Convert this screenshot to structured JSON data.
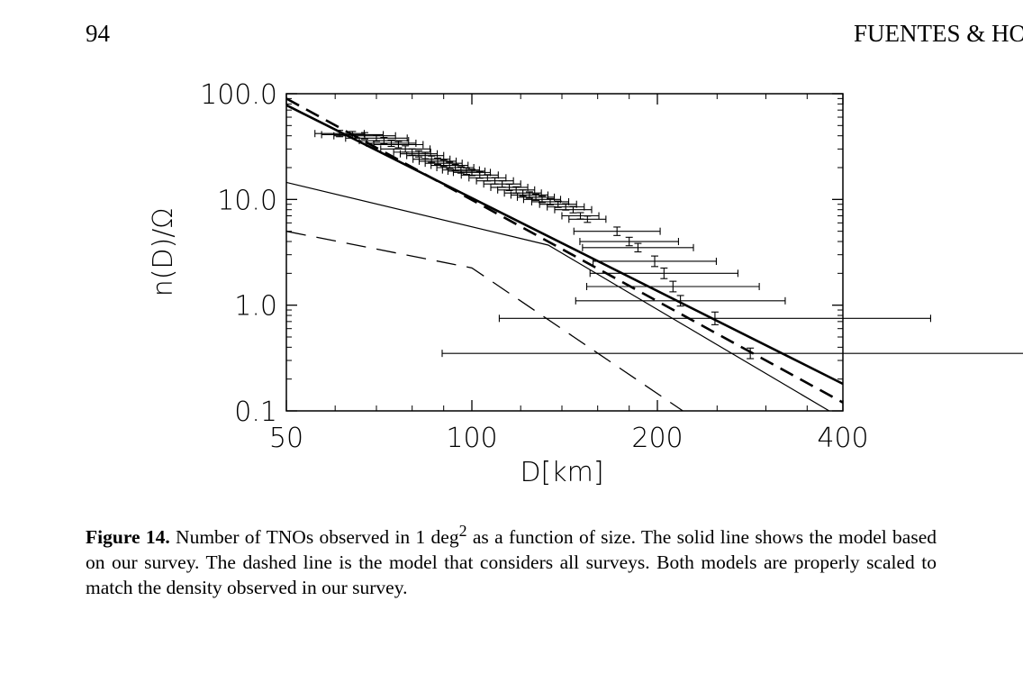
{
  "page": {
    "number": "94",
    "running_head": "FUENTES & HO"
  },
  "caption": {
    "label": "Figure 14.",
    "text_before_sup": "  Number of TNOs observed in 1 deg",
    "sup": "2",
    "text_after_sup": " as a function of size. The solid line shows the model based on our survey. The dashed line is the model that considers all surveys. Both models are properly scaled to match the density observed in our survey."
  },
  "chart_data": {
    "type": "scatter",
    "xlabel": "D[km]",
    "ylabel": "n(D)/Ω",
    "x_scale": "log",
    "y_scale": "log",
    "xlim": [
      50,
      400
    ],
    "ylim": [
      0.1,
      100
    ],
    "x_ticks": [
      50,
      100,
      200,
      400
    ],
    "x_tick_labels": [
      "50",
      "100",
      "200",
      "400"
    ],
    "y_ticks": [
      0.1,
      1,
      10,
      100
    ],
    "y_tick_labels": [
      "0.1",
      "1.0",
      "10.0",
      "100.0"
    ],
    "grid": false,
    "series": [
      {
        "style": "thick-solid",
        "points": [
          [
            50,
            78
          ],
          [
            400,
            0.18
          ]
        ]
      },
      {
        "style": "thick-dashed",
        "points": [
          [
            50,
            90
          ],
          [
            400,
            0.12
          ]
        ]
      },
      {
        "style": "thin-solid",
        "points": [
          [
            50,
            14.5
          ],
          [
            133,
            3.7
          ],
          [
            380,
            0.1
          ]
        ]
      },
      {
        "style": "thin-dashed",
        "points": [
          [
            50,
            5.0
          ],
          [
            100,
            2.25
          ],
          [
            220,
            0.1
          ]
        ]
      }
    ],
    "observations": [
      [
        61,
        42,
        0.04,
        0.03
      ],
      [
        64,
        41,
        0.05,
        0.03
      ],
      [
        67,
        40,
        0.05,
        0.03
      ],
      [
        70,
        38,
        0.05,
        0.03
      ],
      [
        72,
        36,
        0.04,
        0.03
      ],
      [
        74,
        34,
        0.04,
        0.03
      ],
      [
        76,
        33,
        0.04,
        0.03
      ],
      [
        78,
        30,
        0.04,
        0.03
      ],
      [
        80,
        28,
        0.03,
        0.03
      ],
      [
        82,
        27,
        0.03,
        0.03
      ],
      [
        84,
        26,
        0.03,
        0.03
      ],
      [
        86,
        24,
        0.03,
        0.03
      ],
      [
        88,
        23,
        0.03,
        0.03
      ],
      [
        90,
        22,
        0.03,
        0.03
      ],
      [
        92,
        21,
        0.03,
        0.03
      ],
      [
        94,
        20,
        0.03,
        0.03
      ],
      [
        96,
        19,
        0.03,
        0.03
      ],
      [
        98,
        18.5,
        0.03,
        0.03
      ],
      [
        100,
        18,
        0.03,
        0.03
      ],
      [
        103,
        17,
        0.03,
        0.03
      ],
      [
        106,
        16,
        0.03,
        0.03
      ],
      [
        109,
        15,
        0.03,
        0.03
      ],
      [
        112,
        14,
        0.03,
        0.03
      ],
      [
        115,
        13,
        0.03,
        0.03
      ],
      [
        118,
        12.3,
        0.03,
        0.03
      ],
      [
        121,
        11.5,
        0.03,
        0.03
      ],
      [
        124,
        11,
        0.03,
        0.03
      ],
      [
        127,
        10.5,
        0.03,
        0.03
      ],
      [
        130,
        10,
        0.03,
        0.03
      ],
      [
        134,
        9.5,
        0.03,
        0.03
      ],
      [
        138,
        9,
        0.03,
        0.03
      ],
      [
        142,
        8.5,
        0.03,
        0.03
      ],
      [
        146,
        8,
        0.03,
        0.03
      ],
      [
        150,
        7,
        0.03,
        0.03
      ],
      [
        154,
        6.5,
        0.03,
        0.03
      ],
      [
        172,
        5,
        0.07,
        0.04
      ],
      [
        180,
        4,
        0.08,
        0.04
      ],
      [
        186,
        3.5,
        0.09,
        0.04
      ],
      [
        198,
        2.6,
        0.1,
        0.05
      ],
      [
        205,
        2.0,
        0.12,
        0.05
      ],
      [
        212,
        1.5,
        0.14,
        0.05
      ],
      [
        218,
        1.1,
        0.17,
        0.05
      ],
      [
        248,
        0.75,
        0.35,
        0.06
      ],
      [
        283,
        0.35,
        0.5,
        0.05
      ]
    ]
  }
}
